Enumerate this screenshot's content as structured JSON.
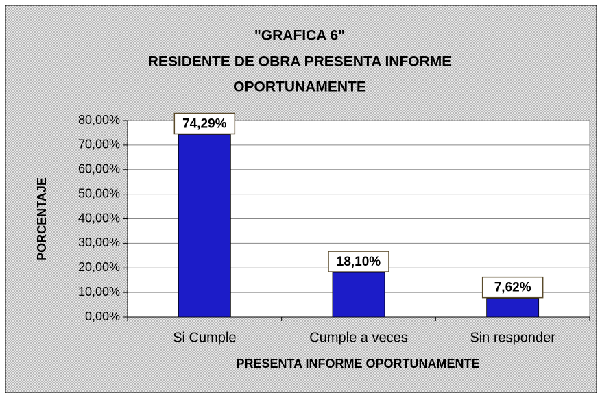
{
  "chart_data": {
    "type": "bar",
    "title": [
      "\"GRAFICA 6\"",
      "RESIDENTE DE OBRA PRESENTA INFORME",
      "OPORTUNAMENTE"
    ],
    "x_label": "PRESENTA INFORME OPORTUNAMENTE",
    "y_label": "PORCENTAJE",
    "categories": [
      "Si Cumple",
      "Cumple a veces",
      "Sin responder"
    ],
    "values": [
      74.29,
      18.1,
      7.62
    ],
    "value_labels": [
      "74,29%",
      "18,10%",
      "7,62%"
    ],
    "color": "#1c1cc8",
    "ylim": [
      0,
      80
    ],
    "yticks": [
      {
        "value": 0,
        "label": "0,00%"
      },
      {
        "value": 10,
        "label": "10,00%"
      },
      {
        "value": 20,
        "label": "20,00%"
      },
      {
        "value": 30,
        "label": "30,00%"
      },
      {
        "value": 40,
        "label": "40,00%"
      },
      {
        "value": 50,
        "label": "50,00%"
      },
      {
        "value": 60,
        "label": "60,00%"
      },
      {
        "value": 70,
        "label": "70,00%"
      },
      {
        "value": 80,
        "label": "80,00%"
      }
    ],
    "grid": true
  }
}
